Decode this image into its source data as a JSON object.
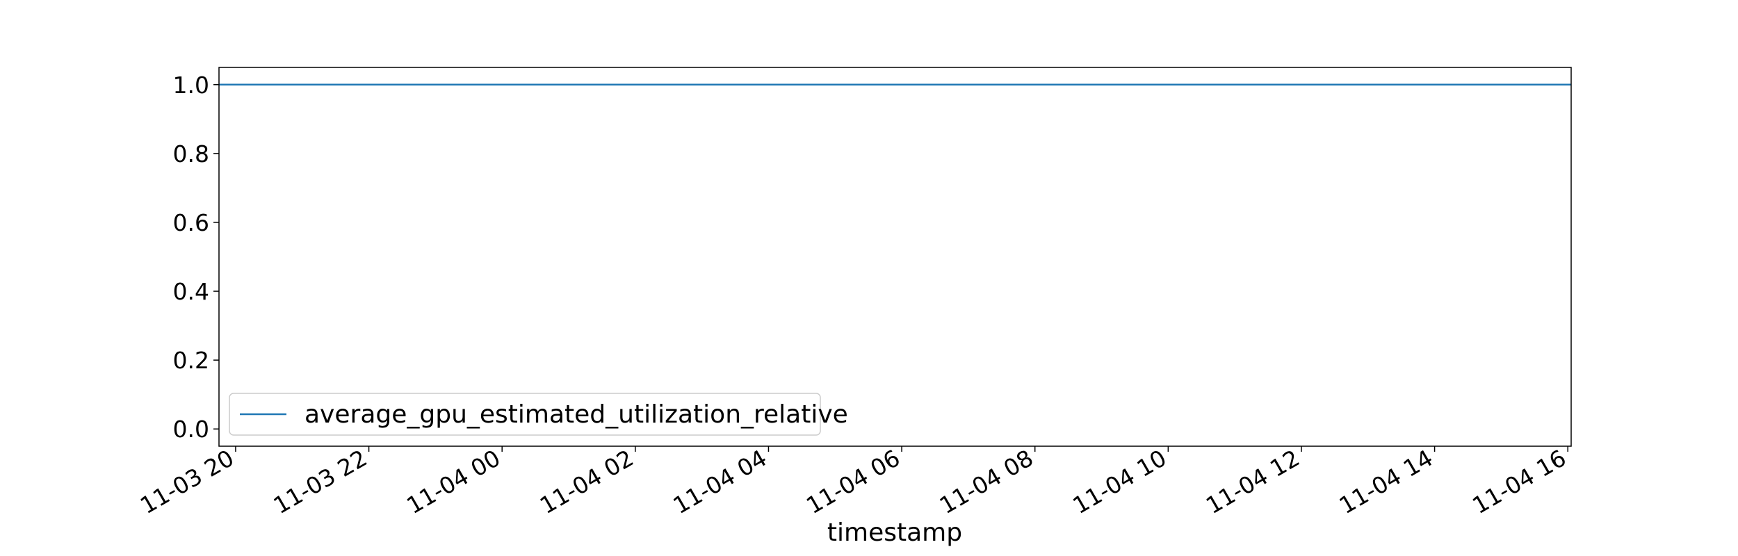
{
  "chart_data": {
    "type": "line",
    "xlabel": "timestamp",
    "ylabel": "",
    "x_ticks": [
      "11-03 20",
      "11-03 22",
      "11-04 00",
      "11-04 02",
      "11-04 04",
      "11-04 06",
      "11-04 08",
      "11-04 10",
      "11-04 12",
      "11-04 14",
      "11-04 16"
    ],
    "x_tick_values": [
      "2023-11-03T20:00",
      "2023-11-03T22:00",
      "2023-11-04T00:00",
      "2023-11-04T02:00",
      "2023-11-04T04:00",
      "2023-11-04T06:00",
      "2023-11-04T08:00",
      "2023-11-04T10:00",
      "2023-11-04T12:00",
      "2023-11-04T14:00",
      "2023-11-04T16:00"
    ],
    "xlim": [
      "2023-11-03T19:45",
      "2023-11-04T16:03"
    ],
    "y_ticks": [
      "0.0",
      "0.2",
      "0.4",
      "0.6",
      "0.8",
      "1.0"
    ],
    "ylim": [
      -0.05,
      1.05
    ],
    "series": [
      {
        "name": "average_gpu_estimated_utilization_relative",
        "color": "#1f77b4",
        "x": [
          "2023-11-03T19:45",
          "2023-11-04T16:03"
        ],
        "y": [
          1.0,
          1.0
        ]
      }
    ],
    "legend_position": "lower-left",
    "grid": false
  }
}
